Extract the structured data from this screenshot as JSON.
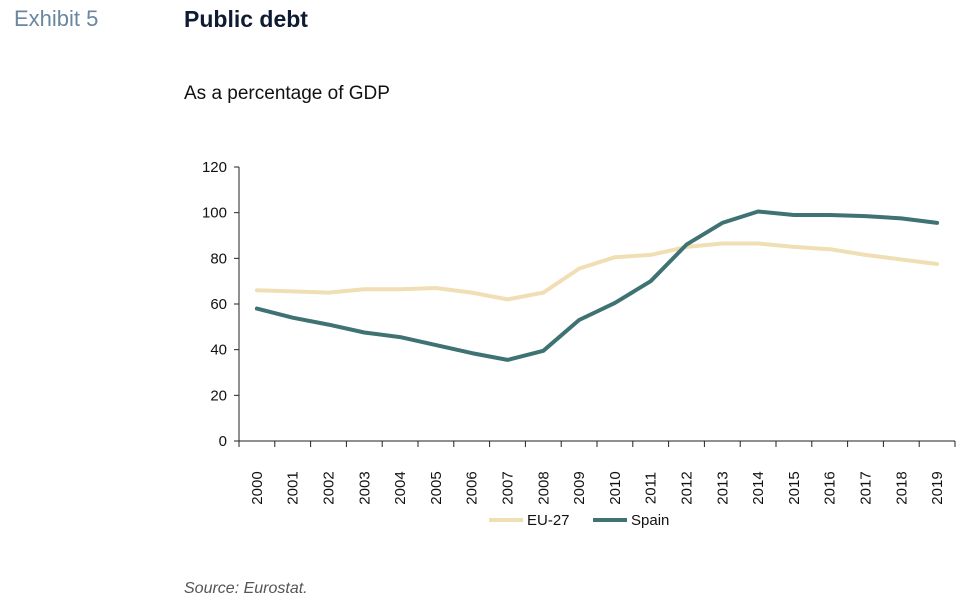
{
  "header": {
    "exhibit": "Exhibit 5",
    "title": "Public debt",
    "subtitle": "As a percentage of GDP"
  },
  "footer": {
    "source": "Source: Eurostat."
  },
  "chart_data": {
    "type": "line",
    "title": "Public debt",
    "subtitle": "As a percentage of GDP",
    "xlabel": "",
    "ylabel": "",
    "categories": [
      "2000",
      "2001",
      "2002",
      "2003",
      "2004",
      "2005",
      "2006",
      "2007",
      "2008",
      "2009",
      "2010",
      "2011",
      "2012",
      "2013",
      "2014",
      "2015",
      "2016",
      "2017",
      "2018",
      "2019"
    ],
    "ylim": [
      0,
      120
    ],
    "yticks": [
      0,
      20,
      40,
      60,
      80,
      100,
      120
    ],
    "grid": false,
    "legend_position": "bottom",
    "series": [
      {
        "name": "EU-27",
        "color": "#f0dfb4",
        "values": [
          66,
          65.5,
          65,
          66.5,
          66.5,
          67,
          65,
          62,
          65,
          75.5,
          80.5,
          81.5,
          85,
          86.5,
          86.5,
          85,
          84,
          81.5,
          79.5,
          77.5
        ]
      },
      {
        "name": "Spain",
        "color": "#3f7272",
        "values": [
          58,
          54,
          51,
          47.5,
          45.5,
          42,
          38.5,
          35.5,
          39.5,
          53,
          60.5,
          70,
          86,
          95.5,
          100.5,
          99,
          99,
          98.5,
          97.5,
          95.5
        ]
      }
    ]
  }
}
